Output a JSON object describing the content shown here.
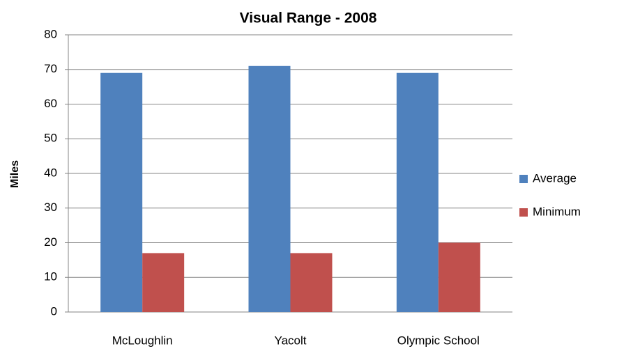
{
  "chart_data": {
    "type": "bar",
    "title": "Visual Range - 2008",
    "y_label": "Miles",
    "categories": [
      "McLoughlin",
      "Yacolt",
      "Olympic School"
    ],
    "series": [
      {
        "name": "Average",
        "color": "#4f81bd",
        "values": [
          69,
          71,
          69
        ]
      },
      {
        "name": "Minimum",
        "color": "#c0504d",
        "values": [
          17,
          17,
          20
        ]
      }
    ],
    "ylim": [
      0,
      80
    ],
    "yticks": [
      0,
      10,
      20,
      30,
      40,
      50,
      60,
      70,
      80
    ],
    "grid": true,
    "legend": "right"
  }
}
